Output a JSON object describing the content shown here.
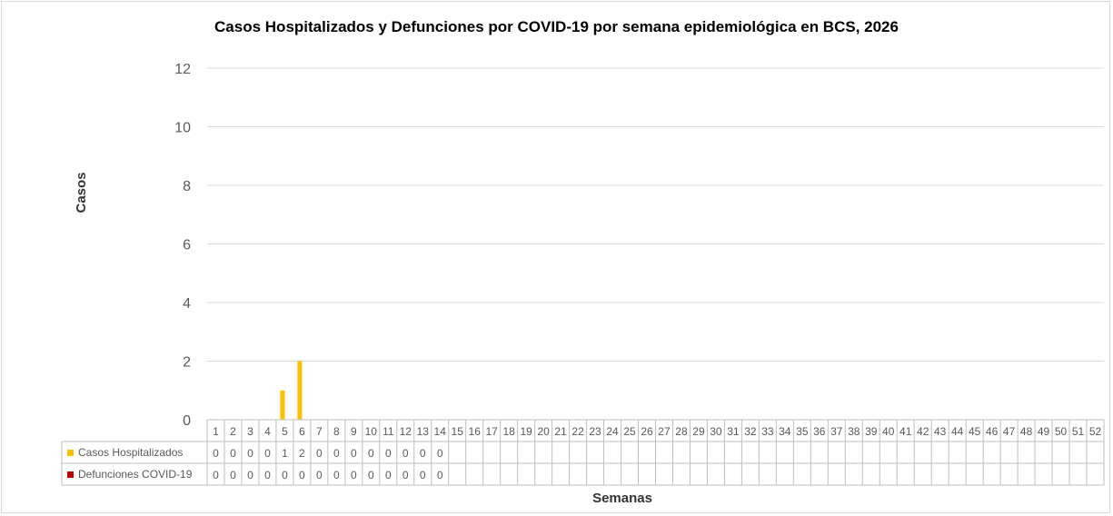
{
  "chart_data": {
    "type": "bar",
    "title": "Casos Hospitalizados  y Defunciones  por COVID-19 por semana epidemiológica  en BCS, 2026",
    "xlabel": "Semanas",
    "ylabel": "Casos",
    "ylim": [
      0,
      12
    ],
    "yticks": [
      "0",
      "2",
      "4",
      "6",
      "8",
      "10",
      "12"
    ],
    "grid": true,
    "legend_position": "data-table",
    "categories": [
      "1",
      "2",
      "3",
      "4",
      "5",
      "6",
      "7",
      "8",
      "9",
      "10",
      "11",
      "12",
      "13",
      "14",
      "15",
      "16",
      "17",
      "18",
      "19",
      "20",
      "21",
      "22",
      "23",
      "24",
      "25",
      "26",
      "27",
      "28",
      "29",
      "30",
      "31",
      "32",
      "33",
      "34",
      "35",
      "36",
      "37",
      "38",
      "39",
      "40",
      "41",
      "42",
      "43",
      "44",
      "45",
      "46",
      "47",
      "48",
      "49",
      "50",
      "51",
      "52"
    ],
    "series": [
      {
        "name": "Casos Hospitalizados",
        "color": "#FFC000",
        "values": [
          0,
          0,
          0,
          0,
          1,
          2,
          0,
          0,
          0,
          0,
          0,
          0,
          0,
          0,
          null,
          null,
          null,
          null,
          null,
          null,
          null,
          null,
          null,
          null,
          null,
          null,
          null,
          null,
          null,
          null,
          null,
          null,
          null,
          null,
          null,
          null,
          null,
          null,
          null,
          null,
          null,
          null,
          null,
          null,
          null,
          null,
          null,
          null,
          null,
          null,
          null,
          null
        ]
      },
      {
        "name": "Defunciones COVID-19",
        "color": "#C00000",
        "values": [
          0,
          0,
          0,
          0,
          0,
          0,
          0,
          0,
          0,
          0,
          0,
          0,
          0,
          0,
          null,
          null,
          null,
          null,
          null,
          null,
          null,
          null,
          null,
          null,
          null,
          null,
          null,
          null,
          null,
          null,
          null,
          null,
          null,
          null,
          null,
          null,
          null,
          null,
          null,
          null,
          null,
          null,
          null,
          null,
          null,
          null,
          null,
          null,
          null,
          null,
          null,
          null
        ]
      }
    ]
  }
}
